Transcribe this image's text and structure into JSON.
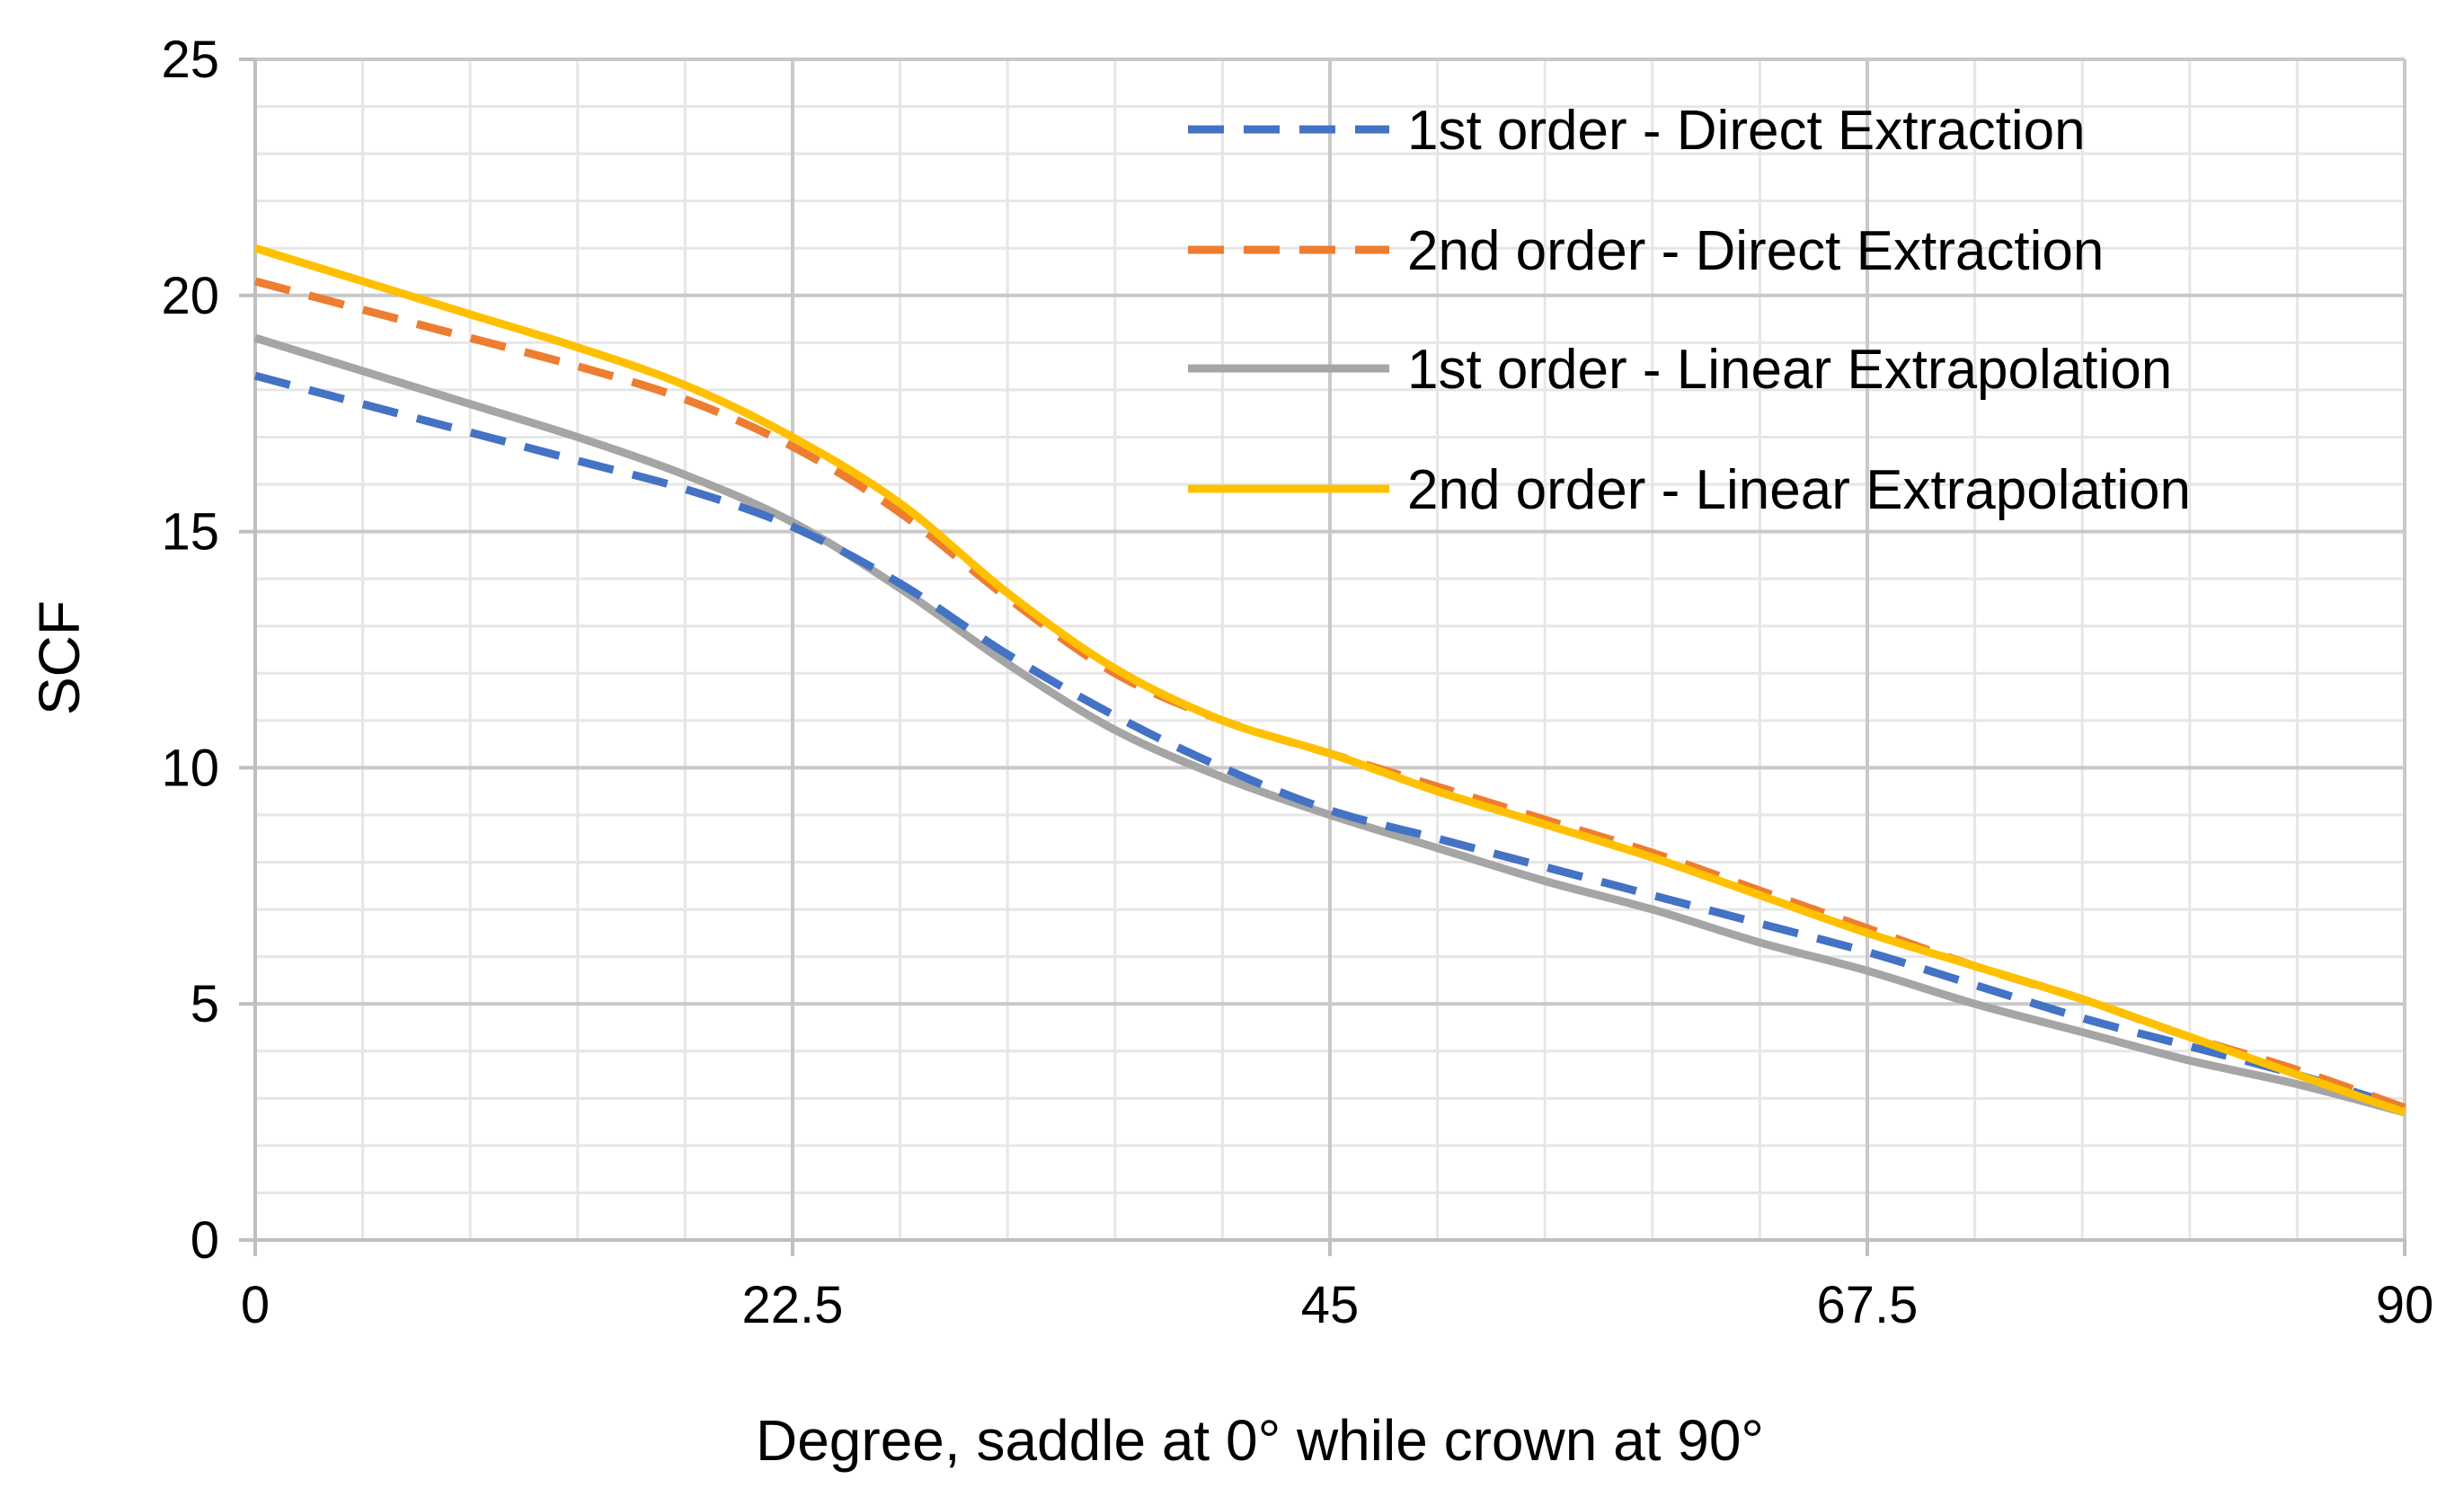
{
  "chart_data": {
    "type": "line",
    "title": "",
    "xlabel": "Degree, saddle at 0° while crown at 90°",
    "ylabel": "SCF",
    "xlim": [
      0,
      90
    ],
    "ylim": [
      0,
      25
    ],
    "x_ticks": [
      "0",
      "22.5",
      "45",
      "67.5",
      "90"
    ],
    "y_ticks": [
      "0",
      "5",
      "10",
      "15",
      "20",
      "25"
    ],
    "grid": "major and minor",
    "legend_position": "top-right",
    "series": [
      {
        "name": "1st order - Direct Extraction",
        "color": "#4472C4",
        "style": "dashed",
        "x": [
          0,
          4.5,
          9,
          13.5,
          18,
          22.5,
          27,
          31.5,
          36,
          40.5,
          45,
          49.5,
          54,
          58.5,
          63,
          67.5,
          72,
          76.5,
          81,
          85.5,
          90
        ],
        "y": [
          18.3,
          17.7,
          17.1,
          16.5,
          15.9,
          15.1,
          13.9,
          12.4,
          11.1,
          10.0,
          9.1,
          8.5,
          7.9,
          7.3,
          6.7,
          6.1,
          5.4,
          4.7,
          4.1,
          3.5,
          2.8
        ]
      },
      {
        "name": "2nd order - Direct Extraction",
        "color": "#ED7D31",
        "style": "dashed",
        "x": [
          0,
          4.5,
          9,
          13.5,
          18,
          22.5,
          27,
          31.5,
          36,
          40.5,
          45,
          49.5,
          54,
          58.5,
          63,
          67.5,
          72,
          76.5,
          81,
          85.5,
          90
        ],
        "y": [
          20.3,
          19.7,
          19.1,
          18.5,
          17.8,
          16.8,
          15.4,
          13.6,
          12.0,
          11.0,
          10.3,
          9.6,
          8.9,
          8.2,
          7.4,
          6.6,
          5.8,
          5.1,
          4.3,
          3.6,
          2.8
        ]
      },
      {
        "name": "1st order - Linear Extrapolation",
        "color": "#A5A5A5",
        "style": "solid",
        "x": [
          0,
          4.5,
          9,
          13.5,
          18,
          22.5,
          27,
          31.5,
          36,
          40.5,
          45,
          49.5,
          54,
          58.5,
          63,
          67.5,
          72,
          76.5,
          81,
          85.5,
          90
        ],
        "y": [
          19.1,
          18.4,
          17.7,
          17.0,
          16.2,
          15.2,
          13.8,
          12.2,
          10.8,
          9.8,
          9.0,
          8.3,
          7.6,
          7.0,
          6.3,
          5.7,
          5.0,
          4.4,
          3.8,
          3.3,
          2.7
        ]
      },
      {
        "name": "2nd order - Linear Extrapolation",
        "color": "#FFC000",
        "style": "solid",
        "x": [
          0,
          4.5,
          9,
          13.5,
          18,
          22.5,
          27,
          31.5,
          36,
          40.5,
          45,
          49.5,
          54,
          58.5,
          63,
          67.5,
          72,
          76.5,
          81,
          85.5,
          90
        ],
        "y": [
          21.0,
          20.3,
          19.6,
          18.9,
          18.1,
          17.0,
          15.6,
          13.7,
          12.1,
          11.0,
          10.3,
          9.5,
          8.8,
          8.1,
          7.3,
          6.5,
          5.8,
          5.1,
          4.3,
          3.5,
          2.7
        ]
      }
    ]
  }
}
